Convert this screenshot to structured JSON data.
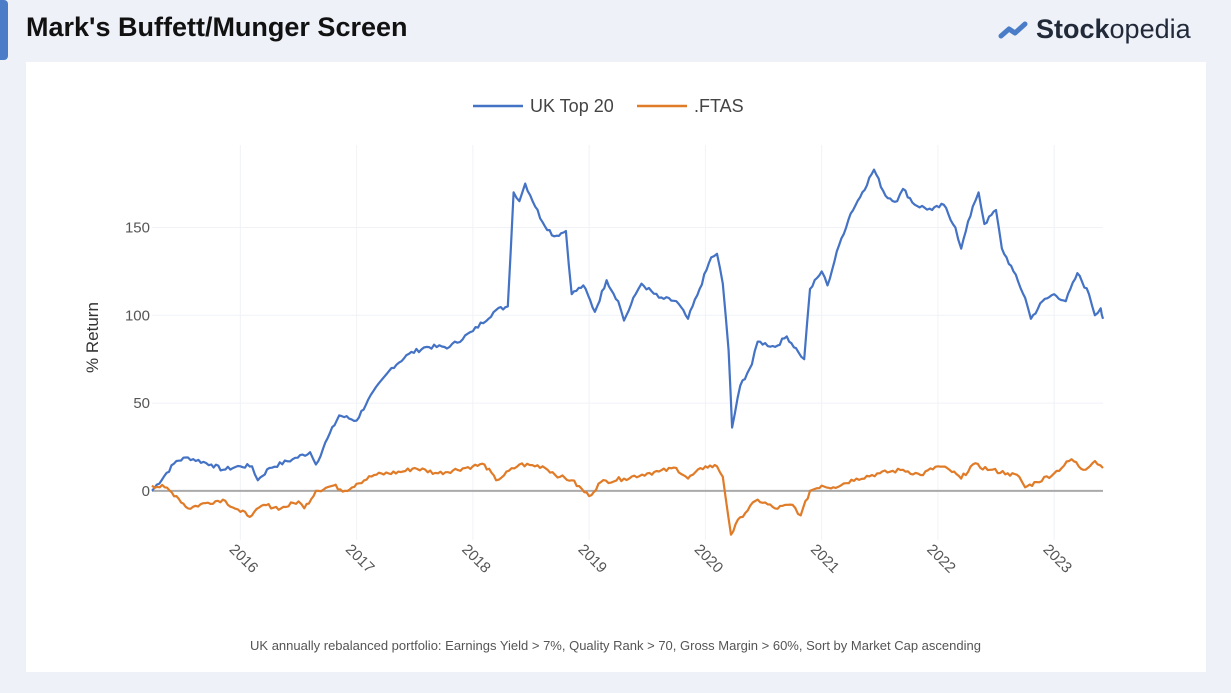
{
  "header": {
    "title": "Mark's Buffett/Munger Screen",
    "logo_bold": "Stock",
    "logo_light": "opedia",
    "logo_icon": "trend-line-icon"
  },
  "caption": "UK annually rebalanced portfolio:  Earnings Yield > 7%, Quality Rank > 70, Gross Margin > 60%,  Sort by Market Cap ascending",
  "chart_data": {
    "type": "line",
    "title": "",
    "xlabel": "",
    "ylabel": "% Return",
    "xlim": [
      2015.24,
      2023.42
    ],
    "ylim": [
      -28,
      197
    ],
    "x_ticks": [
      "2016",
      "2017",
      "2018",
      "2019",
      "2020",
      "2021",
      "2022",
      "2023"
    ],
    "y_ticks": [
      0,
      50,
      100,
      150
    ],
    "grid": true,
    "legend": "top-center",
    "series": [
      {
        "name": "UK Top 20",
        "color": "#4472c4",
        "x": [
          2015.24,
          2015.45,
          2015.55,
          2015.75,
          2015.85,
          2016.0,
          2016.1,
          2016.15,
          2016.25,
          2016.45,
          2016.6,
          2016.65,
          2016.75,
          2016.85,
          2017.0,
          2017.1,
          2017.3,
          2017.45,
          2017.6,
          2017.8,
          2018.0,
          2018.2,
          2018.3,
          2018.35,
          2018.4,
          2018.45,
          2018.6,
          2018.7,
          2018.8,
          2018.85,
          2018.95,
          2019.05,
          2019.15,
          2019.25,
          2019.3,
          2019.4,
          2019.45,
          2019.6,
          2019.75,
          2019.85,
          2019.95,
          2020.05,
          2020.1,
          2020.15,
          2020.2,
          2020.23,
          2020.3,
          2020.4,
          2020.45,
          2020.6,
          2020.7,
          2020.8,
          2020.85,
          2020.9,
          2021.0,
          2021.05,
          2021.15,
          2021.25,
          2021.35,
          2021.45,
          2021.55,
          2021.65,
          2021.7,
          2021.8,
          2021.95,
          2022.05,
          2022.15,
          2022.2,
          2022.3,
          2022.35,
          2022.4,
          2022.5,
          2022.55,
          2022.65,
          2022.75,
          2022.8,
          2022.9,
          2023.0,
          2023.1,
          2023.2,
          2023.3,
          2023.35,
          2023.4,
          2023.42
        ],
        "y": [
          0,
          17,
          19,
          15,
          12,
          14,
          14,
          6,
          13,
          18,
          22,
          15,
          30,
          43,
          40,
          52,
          70,
          78,
          82,
          82,
          91,
          103,
          105,
          170,
          165,
          175,
          153,
          145,
          148,
          112,
          117,
          102,
          120,
          108,
          97,
          112,
          118,
          110,
          108,
          98,
          115,
          133,
          135,
          118,
          80,
          36,
          60,
          72,
          85,
          82,
          88,
          79,
          75,
          115,
          125,
          117,
          140,
          158,
          170,
          183,
          168,
          165,
          172,
          163,
          160,
          163,
          150,
          138,
          162,
          170,
          152,
          160,
          138,
          125,
          110,
          98,
          108,
          112,
          108,
          124,
          112,
          100,
          104,
          98
        ]
      },
      {
        "name": ".FTAS",
        "color": "#e07b28",
        "x": [
          2015.24,
          2015.35,
          2015.45,
          2015.55,
          2015.7,
          2015.85,
          2016.0,
          2016.1,
          2016.2,
          2016.35,
          2016.5,
          2016.55,
          2016.65,
          2016.8,
          2016.9,
          2017.0,
          2017.15,
          2017.4,
          2017.5,
          2017.7,
          2018.0,
          2018.1,
          2018.2,
          2018.4,
          2018.6,
          2018.75,
          2018.85,
          2019.0,
          2019.1,
          2019.3,
          2019.5,
          2019.6,
          2019.75,
          2019.85,
          2020.0,
          2020.1,
          2020.15,
          2020.22,
          2020.3,
          2020.45,
          2020.6,
          2020.75,
          2020.82,
          2020.9,
          2021.0,
          2021.1,
          2021.3,
          2021.5,
          2021.7,
          2021.85,
          2022.0,
          2022.1,
          2022.2,
          2022.3,
          2022.45,
          2022.6,
          2022.7,
          2022.75,
          2022.85,
          2023.0,
          2023.15,
          2023.25,
          2023.35,
          2023.42
        ],
        "y": [
          3,
          2,
          -3,
          -10,
          -7,
          -5,
          -12,
          -14,
          -8,
          -10,
          -6,
          -10,
          0,
          3,
          0,
          4,
          9,
          11,
          13,
          10,
          14,
          15,
          6,
          15,
          14,
          8,
          6,
          -3,
          5,
          7,
          10,
          11,
          13,
          7,
          14,
          14,
          8,
          -25,
          -15,
          -5,
          -10,
          -8,
          -14,
          0,
          3,
          2,
          7,
          10,
          12,
          9,
          14,
          12,
          7,
          15,
          12,
          10,
          8,
          2,
          5,
          10,
          18,
          12,
          17,
          13
        ]
      }
    ]
  }
}
